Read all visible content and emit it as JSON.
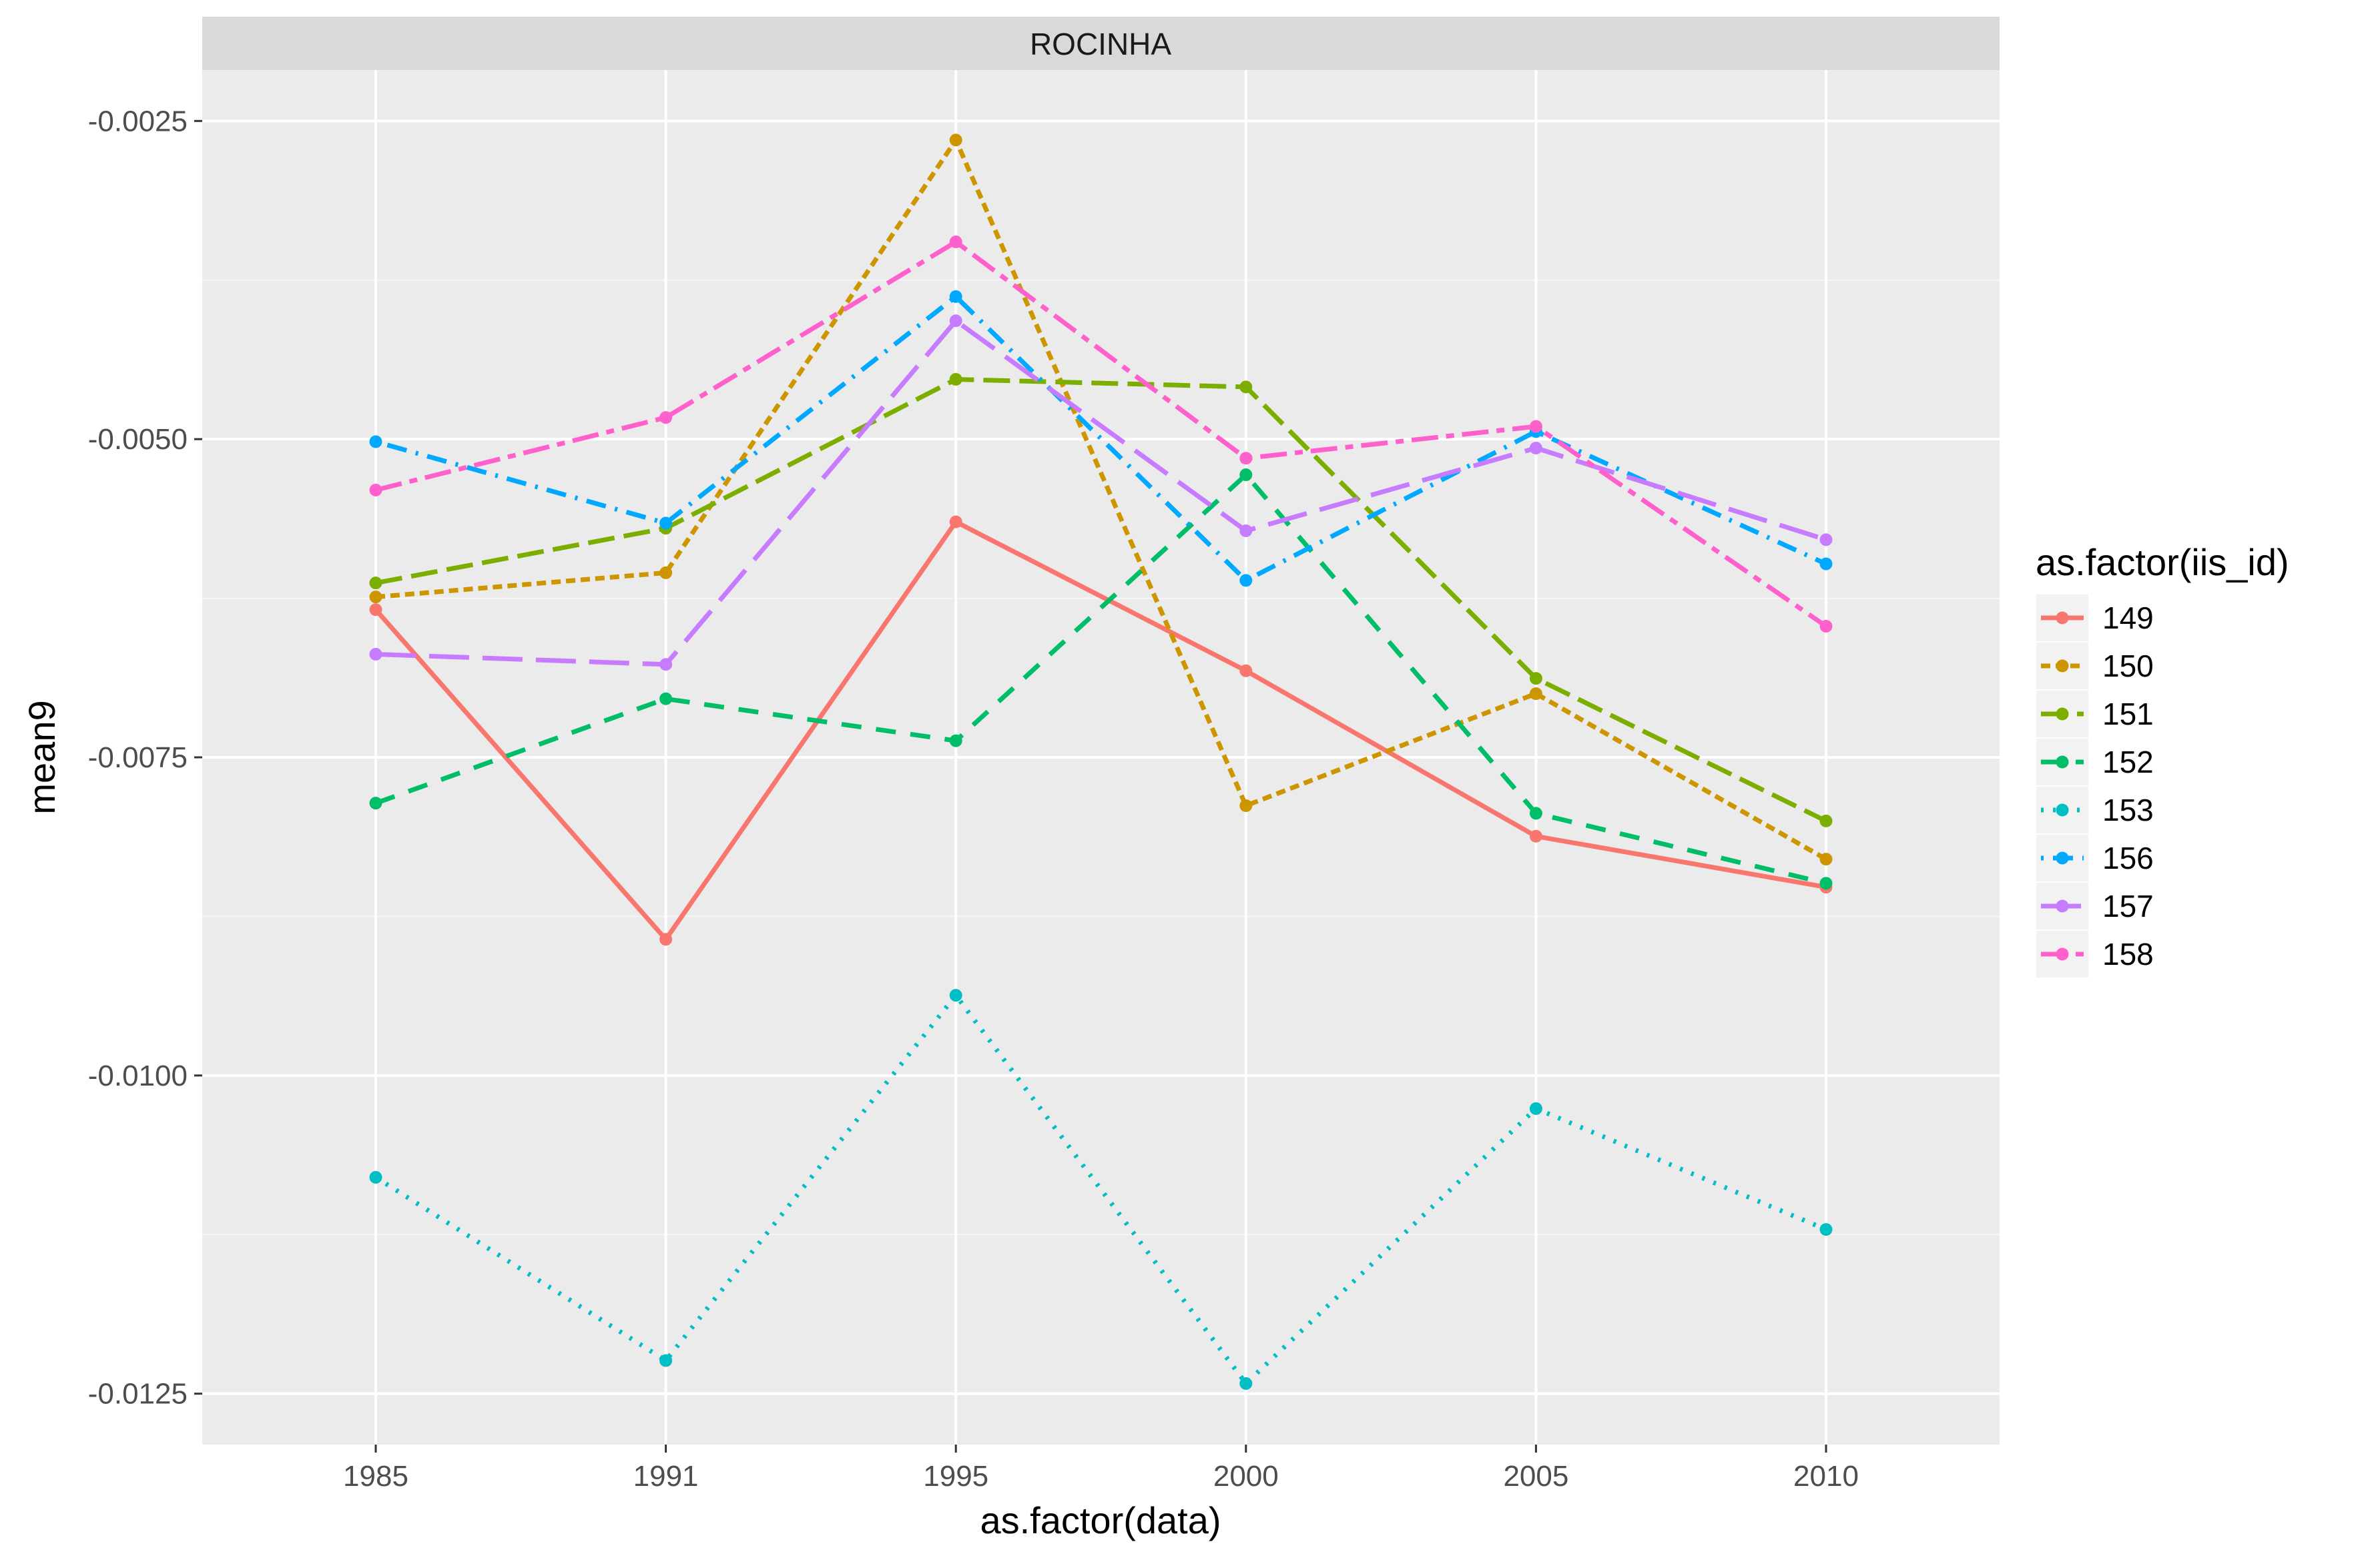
{
  "chart_data": {
    "type": "line",
    "facet_label": "ROCINHA",
    "xlabel": "as.factor(data)",
    "ylabel": "mean9",
    "categories": [
      "1985",
      "1991",
      "1995",
      "2000",
      "2005",
      "2010"
    ],
    "ylim": [
      -0.0129,
      -0.0021
    ],
    "y_ticks": [
      -0.0125,
      -0.01,
      -0.0075,
      -0.005,
      -0.0025
    ],
    "y_tick_labels": [
      "-0.0125",
      "-0.0100",
      "-0.0075",
      "-0.0050",
      "-0.0025"
    ],
    "grid": true,
    "legend": {
      "title": "as.factor(iis_id)",
      "position": "right"
    },
    "series": [
      {
        "name": "149",
        "color": "#F8766D",
        "dash": "solid",
        "values": [
          -0.00634,
          -0.00893,
          -0.00565,
          -0.00682,
          -0.00812,
          -0.00852
        ]
      },
      {
        "name": "150",
        "color": "#CD9600",
        "dash": "dashed",
        "values": [
          -0.00624,
          -0.00605,
          -0.00265,
          -0.00788,
          -0.007,
          -0.0083
        ]
      },
      {
        "name": "151",
        "color": "#7CAE00",
        "dash": "longdash",
        "values": [
          -0.00613,
          -0.0057,
          -0.00453,
          -0.00459,
          -0.00688,
          -0.008
        ]
      },
      {
        "name": "152",
        "color": "#00BE67",
        "dash": "dashed2",
        "values": [
          -0.00786,
          -0.00704,
          -0.00737,
          -0.00528,
          -0.00794,
          -0.00849
        ]
      },
      {
        "name": "153",
        "color": "#00BFC4",
        "dash": "dotted",
        "values": [
          -0.0108,
          -0.01224,
          -0.00937,
          -0.01242,
          -0.01026,
          -0.01121
        ]
      },
      {
        "name": "156",
        "color": "#00A9FF",
        "dash": "dotdash",
        "values": [
          -0.00502,
          -0.00566,
          -0.00388,
          -0.00611,
          -0.00494,
          -0.00598
        ]
      },
      {
        "name": "157",
        "color": "#C77CFF",
        "dash": "longdash2",
        "values": [
          -0.00669,
          -0.00677,
          -0.00407,
          -0.00572,
          -0.00507,
          -0.00579
        ]
      },
      {
        "name": "158",
        "color": "#FF61CC",
        "dash": "twodash",
        "values": [
          -0.0054,
          -0.00483,
          -0.00345,
          -0.00515,
          -0.0049,
          -0.00647
        ]
      }
    ]
  }
}
